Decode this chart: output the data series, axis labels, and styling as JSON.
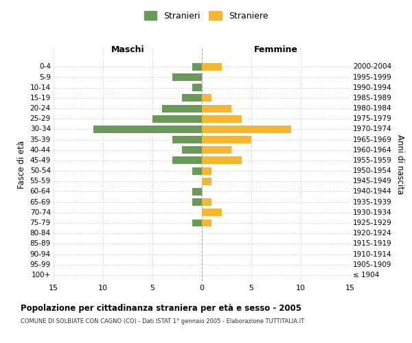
{
  "age_groups": [
    "100+",
    "95-99",
    "90-94",
    "85-89",
    "80-84",
    "75-79",
    "70-74",
    "65-69",
    "60-64",
    "55-59",
    "50-54",
    "45-49",
    "40-44",
    "35-39",
    "30-34",
    "25-29",
    "20-24",
    "15-19",
    "10-14",
    "5-9",
    "0-4"
  ],
  "birth_years": [
    "≤ 1904",
    "1905-1909",
    "1910-1914",
    "1915-1919",
    "1920-1924",
    "1925-1929",
    "1930-1934",
    "1935-1939",
    "1940-1944",
    "1945-1949",
    "1950-1954",
    "1955-1959",
    "1960-1964",
    "1965-1969",
    "1970-1974",
    "1975-1979",
    "1980-1984",
    "1985-1989",
    "1990-1994",
    "1995-1999",
    "2000-2004"
  ],
  "maschi": [
    0,
    0,
    0,
    0,
    0,
    1,
    0,
    1,
    1,
    0,
    1,
    3,
    2,
    3,
    11,
    5,
    4,
    2,
    1,
    3,
    1
  ],
  "femmine": [
    0,
    0,
    0,
    0,
    0,
    1,
    2,
    1,
    0,
    1,
    1,
    4,
    3,
    5,
    9,
    4,
    3,
    1,
    0,
    0,
    2
  ],
  "color_maschi": "#6a9a5a",
  "color_femmine": "#f5b731",
  "title": "Popolazione per cittadinanza straniera per età e sesso - 2005",
  "subtitle": "COMUNE DI SOLBIATE CON CAGNO (CO) - Dati ISTAT 1° gennaio 2005 - Elaborazione TUTTITALIA.IT",
  "xlabel_left": "Maschi",
  "xlabel_right": "Femmine",
  "ylabel_left": "Fasce di età",
  "ylabel_right": "Anni di nascita",
  "legend_stranieri": "Stranieri",
  "legend_straniere": "Straniere",
  "xlim": 15,
  "background_color": "#ffffff",
  "grid_color": "#cccccc"
}
